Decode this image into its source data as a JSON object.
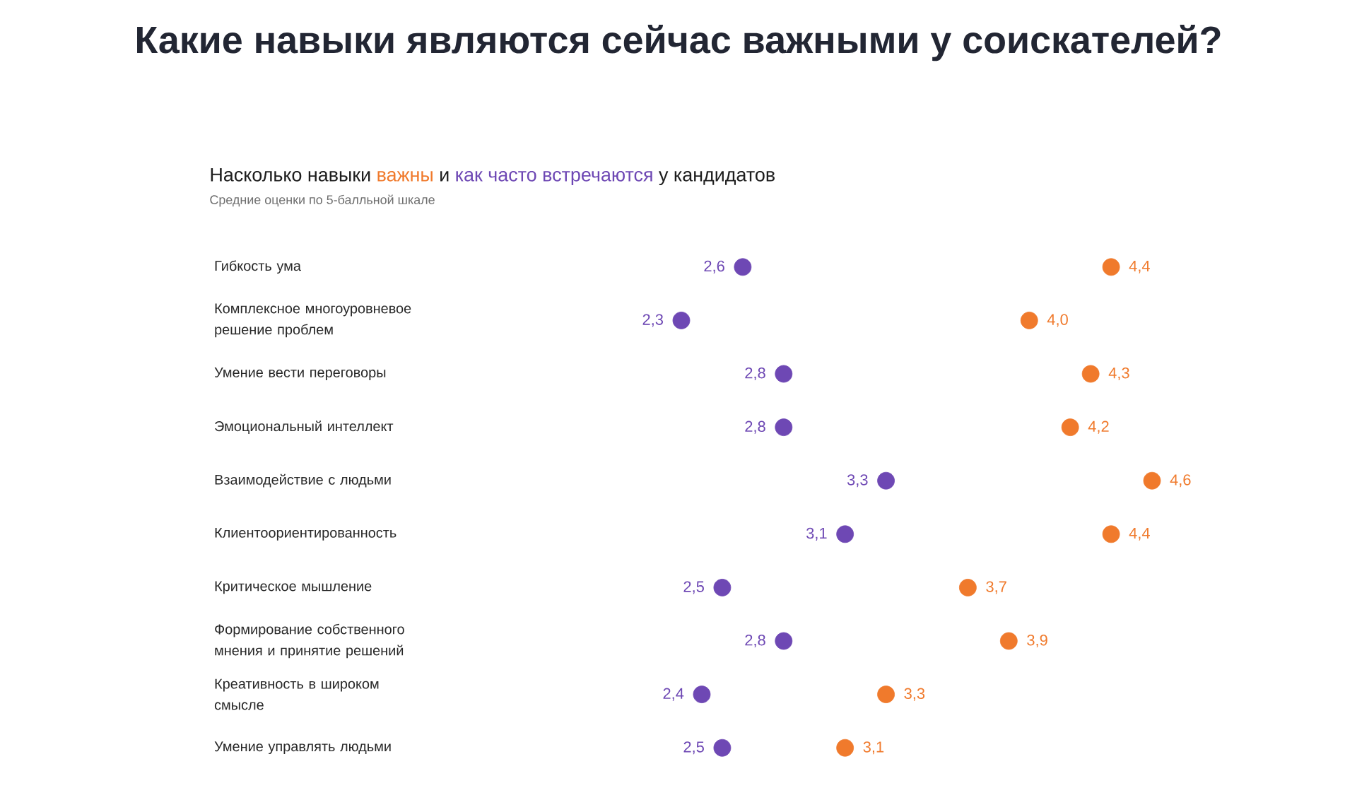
{
  "chart_data": {
    "type": "scatter",
    "title": "Какие навыки являются сейчас важными у соискателей?",
    "subtitle": "Средние оценки по 5-балльной шкале",
    "annotations": [
      "Насколько навыки",
      "и",
      "у кандидатов"
    ],
    "categories": [
      "Гибкость ума",
      "Комплексное многоуровневое решение проблем",
      "Умение вести переговоры",
      "Эмоциональный интеллект",
      "Взаимодействие с людьми",
      "Клиентоориентированность",
      "Критическое мышление",
      "Формирование собственного мнения и принятие решений",
      "Креативность в широком смысле",
      "Умение управлять людьми"
    ],
    "series": [
      {
        "name": "важны",
        "color": "#f07a2c",
        "values": [
          4.4,
          4.0,
          4.3,
          4.2,
          4.6,
          4.4,
          3.7,
          3.9,
          3.3,
          3.1
        ],
        "value_labels": [
          "4,4",
          "4,0",
          "4,3",
          "4,2",
          "4,6",
          "4,4",
          "3,7",
          "3,9",
          "3,3",
          "3,1"
        ]
      },
      {
        "name": "как часто встречаются",
        "color": "#6e48b4",
        "values": [
          2.6,
          2.3,
          2.8,
          2.8,
          3.3,
          3.1,
          2.5,
          2.8,
          2.4,
          2.5
        ],
        "value_labels": [
          "2,6",
          "2,3",
          "2,8",
          "2,8",
          "3,3",
          "3,1",
          "2,5",
          "2,8",
          "2,4",
          "2,5"
        ]
      }
    ],
    "orientation": "horizontal"
  }
}
